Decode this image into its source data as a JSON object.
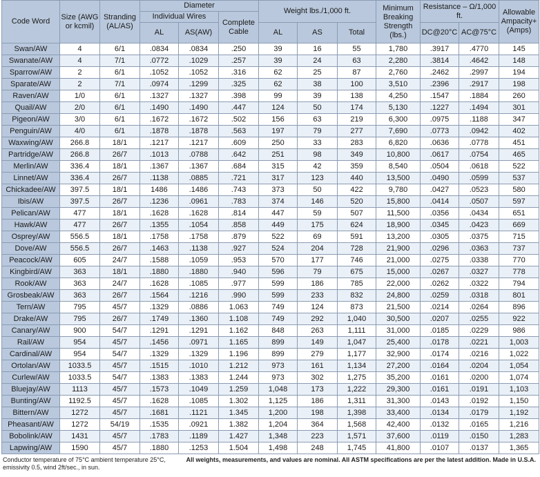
{
  "headers": {
    "code_word": "Code Word",
    "size": "Size (AWG or kcmil)",
    "stranding": "Stranding (AL/AS)",
    "diameter": "Diameter",
    "individual_wires": "Individual Wires",
    "al": "AL",
    "as_aw": "AS(AW)",
    "complete_cable": "Complete Cable",
    "weight": "Weight lbs./1,000 ft.",
    "w_al": "AL",
    "w_as": "AS",
    "w_total": "Total",
    "min_breaking": "Minimum Breaking Strength (lbs.)",
    "resistance": "Resistance – Ω/1,000 ft.",
    "dc20": "DC@20°C",
    "ac75": "AC@75°C",
    "ampacity": "Allowable Ampacity+ (Amps)"
  },
  "rows": [
    [
      "Swan/AW",
      "4",
      "6/1",
      ".0834",
      ".0834",
      ".250",
      "39",
      "16",
      "55",
      "1,780",
      ".3917",
      ".4770",
      "145"
    ],
    [
      "Swanate/AW",
      "4",
      "7/1",
      ".0772",
      ".1029",
      ".257",
      "39",
      "24",
      "63",
      "2,280",
      ".3814",
      ".4642",
      "148"
    ],
    [
      "Sparrow/AW",
      "2",
      "6/1",
      ".1052",
      ".1052",
      ".316",
      "62",
      "25",
      "87",
      "2,760",
      ".2462",
      ".2997",
      "194"
    ],
    [
      "Sparate/AW",
      "2",
      "7/1",
      ".0974",
      ".1299",
      ".325",
      "62",
      "38",
      "100",
      "3,510",
      ".2396",
      ".2917",
      "198"
    ],
    [
      "Raven/AW",
      "1/0",
      "6/1",
      ".1327",
      ".1327",
      ".398",
      "99",
      "39",
      "138",
      "4,250",
      ".1547",
      ".1884",
      "260"
    ],
    [
      "Quail/AW",
      "2/0",
      "6/1",
      ".1490",
      ".1490",
      ".447",
      "124",
      "50",
      "174",
      "5,130",
      ".1227",
      ".1494",
      "301"
    ],
    [
      "Pigeon/AW",
      "3/0",
      "6/1",
      ".1672",
      ".1672",
      ".502",
      "156",
      "63",
      "219",
      "6,300",
      ".0975",
      ".1188",
      "347"
    ],
    [
      "Penguin/AW",
      "4/0",
      "6/1",
      ".1878",
      ".1878",
      ".563",
      "197",
      "79",
      "277",
      "7,690",
      ".0773",
      ".0942",
      "402"
    ],
    [
      "Waxwing/AW",
      "266.8",
      "18/1",
      ".1217",
      ".1217",
      ".609",
      "250",
      "33",
      "283",
      "6,820",
      ".0636",
      ".0778",
      "451"
    ],
    [
      "Partridge/AW",
      "266.8",
      "26/7",
      ".1013",
      ".0788",
      ".642",
      "251",
      "98",
      "349",
      "10,800",
      ".0617",
      ".0754",
      "465"
    ],
    [
      "Merlin/AW",
      "336.4",
      "18/1",
      ".1367",
      ".1367",
      ".684",
      "315",
      "42",
      "359",
      "8,540",
      ".0504",
      ".0618",
      "522"
    ],
    [
      "Linnet/AW",
      "336.4",
      "26/7",
      ".1138",
      ".0885",
      ".721",
      "317",
      "123",
      "440",
      "13,500",
      ".0490",
      ".0599",
      "537"
    ],
    [
      "Chickadee/AW",
      "397.5",
      "18/1",
      "1486",
      ".1486",
      ".743",
      "373",
      "50",
      "422",
      "9,780",
      ".0427",
      ".0523",
      "580"
    ],
    [
      "Ibis/AW",
      "397.5",
      "26/7",
      ".1236",
      ".0961",
      ".783",
      "374",
      "146",
      "520",
      "15,800",
      ".0414",
      ".0507",
      "597"
    ],
    [
      "Pelican/AW",
      "477",
      "18/1",
      ".1628",
      ".1628",
      ".814",
      "447",
      "59",
      "507",
      "11,500",
      ".0356",
      ".0434",
      "651"
    ],
    [
      "Hawk/AW",
      "477",
      "26/7",
      ".1355",
      ".1054",
      ".858",
      "449",
      "175",
      "624",
      "18,900",
      ".0345",
      ".0423",
      "669"
    ],
    [
      "Osprey/AW",
      "556.5",
      "18/1",
      ".1758",
      ".1758",
      ".879",
      "522",
      "69",
      "591",
      "13,200",
      ".0305",
      ".0375",
      "715"
    ],
    [
      "Dove/AW",
      "556.5",
      "26/7",
      ".1463",
      ".1138",
      ".927",
      "524",
      "204",
      "728",
      "21,900",
      ".0296",
      ".0363",
      "737"
    ],
    [
      "Peacock/AW",
      "605",
      "24/7",
      ".1588",
      ".1059",
      ".953",
      "570",
      "177",
      "746",
      "21,000",
      ".0275",
      ".0338",
      "770"
    ],
    [
      "Kingbird/AW",
      "363",
      "18/1",
      ".1880",
      ".1880",
      ".940",
      "596",
      "79",
      "675",
      "15,000",
      ".0267",
      ".0327",
      "778"
    ],
    [
      "Rook/AW",
      "363",
      "24/7",
      ".1628",
      ".1085",
      ".977",
      "599",
      "186",
      "785",
      "22,000",
      ".0262",
      ".0322",
      "794"
    ],
    [
      "Grosbeak/AW",
      "363",
      "26/7",
      ".1564",
      ".1216",
      ".990",
      "599",
      "233",
      "832",
      "24,800",
      ".0259",
      ".0318",
      "801"
    ],
    [
      "Tern/AW",
      "795",
      "45/7",
      ".1329",
      ".0886",
      "1.063",
      "749",
      "124",
      "873",
      "21,500",
      ".0214",
      ".0264",
      "896"
    ],
    [
      "Drake/AW",
      "795",
      "26/7",
      ".1749",
      ".1360",
      "1.108",
      "749",
      "292",
      "1,040",
      "30,500",
      ".0207",
      ".0255",
      "922"
    ],
    [
      "Canary/AW",
      "900",
      "54/7",
      ".1291",
      ".1291",
      "1.162",
      "848",
      "263",
      "1,111",
      "31,000",
      ".0185",
      ".0229",
      "986"
    ],
    [
      "Rail/AW",
      "954",
      "45/7",
      ".1456",
      ".0971",
      "1.165",
      "899",
      "149",
      "1,047",
      "25,400",
      ".0178",
      ".0221",
      "1,003"
    ],
    [
      "Cardinal/AW",
      "954",
      "54/7",
      ".1329",
      ".1329",
      "1.196",
      "899",
      "279",
      "1,177",
      "32,900",
      ".0174",
      ".0216",
      "1,022"
    ],
    [
      "Ortolan/AW",
      "1033.5",
      "45/7",
      ".1515",
      ".1010",
      "1.212",
      "973",
      "161",
      "1,134",
      "27,200",
      ".0164",
      ".0204",
      "1,054"
    ],
    [
      "Curlew/AW",
      "1033.5",
      "54/7",
      ".1383",
      ".1383",
      "1.244",
      "973",
      "302",
      "1,275",
      "35,200",
      ".0161",
      ".0200",
      "1,074"
    ],
    [
      "Bluejay/AW",
      "1113",
      "45/7",
      ".1573",
      ".1049",
      "1.259",
      "1,048",
      "173",
      "1,222",
      "29,300",
      ".0161",
      ".0191",
      "1,103"
    ],
    [
      "Bunting/AW",
      "1192.5",
      "45/7",
      ".1628",
      ".1085",
      "1.302",
      "1,125",
      "186",
      "1,311",
      "31,300",
      ".0143",
      ".0192",
      "1,150"
    ],
    [
      "Bittern/AW",
      "1272",
      "45/7",
      ".1681",
      ".1121",
      "1.345",
      "1,200",
      "198",
      "1,398",
      "33,400",
      ".0134",
      ".0179",
      "1,192"
    ],
    [
      "Pheasant/AW",
      "1272",
      "54/19",
      ".1535",
      ".0921",
      "1.382",
      "1,204",
      "364",
      "1,568",
      "42,400",
      ".0132",
      ".0165",
      "1,216"
    ],
    [
      "Bobolink/AW",
      "1431",
      "45/7",
      ".1783",
      ".1189",
      "1.427",
      "1,348",
      "223",
      "1,571",
      "37,600",
      ".0119",
      ".0150",
      "1,283"
    ],
    [
      "Lapwing/AW",
      "1590",
      "45/7",
      ".1880",
      ".1253",
      "1.504",
      "1,498",
      "248",
      "1,745",
      "41,800",
      ".0107",
      ".0137",
      "1,365"
    ]
  ],
  "footnotes": {
    "left": "Conductor temperature of 75°C ambient temperature 25°C, emissivity 0.5, wind 2ft/sec., in sun.",
    "right": "All weights, measurements, and values are nominal. All ASTM specifications are per the latest addition. Made in U.S.A."
  }
}
